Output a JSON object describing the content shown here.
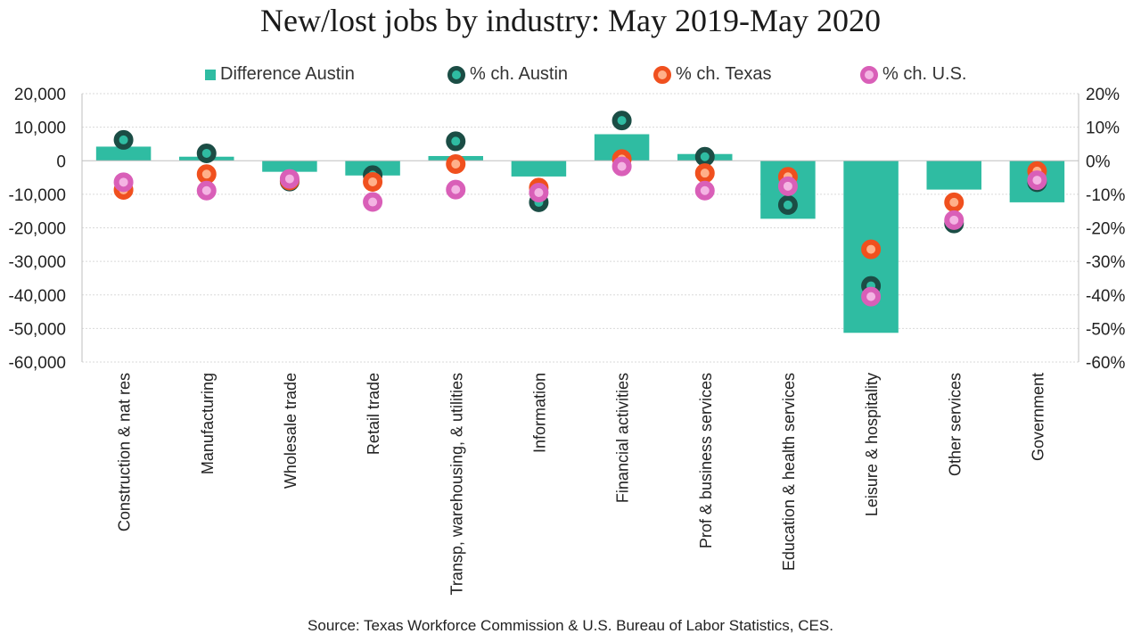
{
  "title": "New/lost jobs by industry: May 2019-May 2020",
  "source": "Source: Texas Workforce Commission & U.S. Bureau of Labor Statistics, CES.",
  "colors": {
    "bar": "#2fbca2",
    "austin": "#1b4d45",
    "texas": "#f0501e",
    "us": "#d95fb8",
    "dot_center_austin": "#2fbca2",
    "dot_center_texas": "#ffb08a",
    "dot_center_us": "#f4b4e3"
  },
  "legend": {
    "bar": "Difference Austin",
    "austin": "% ch. Austin",
    "texas": "% ch. Texas",
    "us": "% ch. U.S."
  },
  "chart_data": {
    "type": "bar",
    "categories": [
      "Construction & nat res",
      "Manufacturing",
      "Wholesale trade",
      "Retail trade",
      "Transp, warehousing, & utilities",
      "Information",
      "Financial activities",
      "Prof & business services",
      "Education & health services",
      "Leisure & hospitality",
      "Other services",
      "Government"
    ],
    "series": [
      {
        "name": "Difference Austin",
        "axis": "left",
        "kind": "bar",
        "values": [
          4200,
          1200,
          -3300,
          -4400,
          1400,
          -4700,
          7900,
          2000,
          -17300,
          -51300,
          -8600,
          -12400
        ]
      },
      {
        "name": "% ch. Austin",
        "axis": "right",
        "kind": "marker",
        "values": [
          6.2,
          2.2,
          -6.2,
          -4.3,
          5.8,
          -12.4,
          12.0,
          1.2,
          -13.2,
          -37.3,
          -18.7,
          -6.4
        ]
      },
      {
        "name": "% ch. Texas",
        "axis": "right",
        "kind": "marker",
        "values": [
          -8.7,
          -4.0,
          -5.9,
          -6.3,
          -1.0,
          -8.0,
          0.5,
          -3.7,
          -4.8,
          -26.4,
          -12.4,
          -3.1
        ]
      },
      {
        "name": "% ch. U.S.",
        "axis": "right",
        "kind": "marker",
        "values": [
          -6.4,
          -8.9,
          -5.4,
          -12.3,
          -8.6,
          -9.5,
          -1.7,
          -8.9,
          -7.6,
          -40.5,
          -17.7,
          -5.8
        ]
      }
    ],
    "y_left": {
      "ylim": [
        -60000,
        20000
      ],
      "ticks": [
        20000,
        10000,
        0,
        -10000,
        -20000,
        -30000,
        -40000,
        -50000,
        -60000
      ],
      "tick_labels": [
        "20,000",
        "10,000",
        "0",
        "-10,000",
        "-20,000",
        "-30,000",
        "-40,000",
        "-50,000",
        "-60,000"
      ]
    },
    "y_right": {
      "ylim": [
        -60,
        20
      ],
      "ticks": [
        20,
        10,
        0,
        -10,
        -20,
        -30,
        -40,
        -50,
        -60
      ],
      "tick_labels": [
        "20%",
        "10%",
        "0%",
        "-10%",
        "-20%",
        "-30%",
        "-40%",
        "-50%",
        "-60%"
      ]
    },
    "grid": true,
    "legend_position": "top"
  }
}
